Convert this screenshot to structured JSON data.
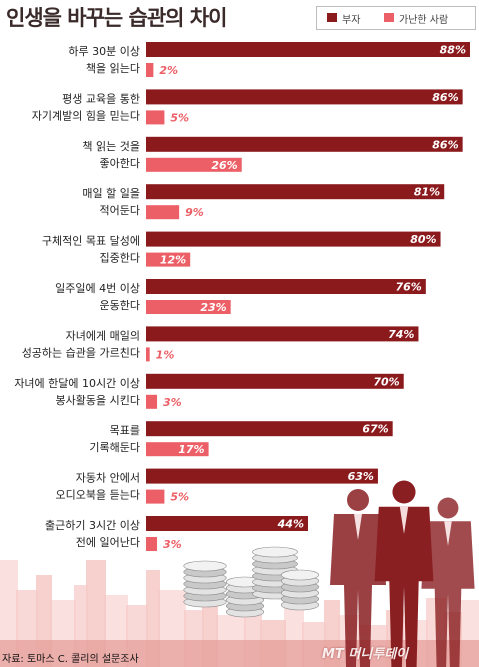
{
  "title": "인생을 바꾸는 습관의 차이",
  "colors": {
    "rich": "#8b1a1d",
    "poor": "#ec5f66",
    "skyline": "#f6c9c6",
    "figures": "#8a1f22"
  },
  "chart_data": {
    "type": "bar",
    "orientation": "horizontal",
    "title": "인생을 바꾸는 습관의 차이",
    "legend_position": "top-right",
    "value_suffix": "%",
    "xlim": [
      0,
      88
    ],
    "categories": [
      [
        "하루 30분 이상",
        "책을 읽는다"
      ],
      [
        "평생 교육을 통한",
        "자기계발의 힘을 믿는다"
      ],
      [
        "책 읽는 것을",
        "좋아한다"
      ],
      [
        "매일 할 일을",
        "적어둔다"
      ],
      [
        "구체적인 목표 달성에",
        "집중한다"
      ],
      [
        "일주일에 4번 이상",
        "운동한다"
      ],
      [
        "자녀에게 매일의",
        "성공하는 습관을 가르친다"
      ],
      [
        "자녀에 한달에 10시간 이상",
        "봉사활동을 시킨다"
      ],
      [
        "목표를",
        "기록해둔다"
      ],
      [
        "자동차 안에서",
        "오디오북을 듣는다"
      ],
      [
        "출근하기 3시간 이상",
        "전에 일어난다"
      ]
    ],
    "series": [
      {
        "name": "부자",
        "values": [
          88,
          86,
          86,
          81,
          80,
          76,
          74,
          70,
          67,
          63,
          44
        ]
      },
      {
        "name": "가난한 사람",
        "values": [
          2,
          5,
          26,
          9,
          12,
          23,
          1,
          3,
          17,
          5,
          3
        ]
      }
    ]
  },
  "source": "자료: 토마스 C. 콜리의 설문조사",
  "watermark": "MT 머니투데이"
}
